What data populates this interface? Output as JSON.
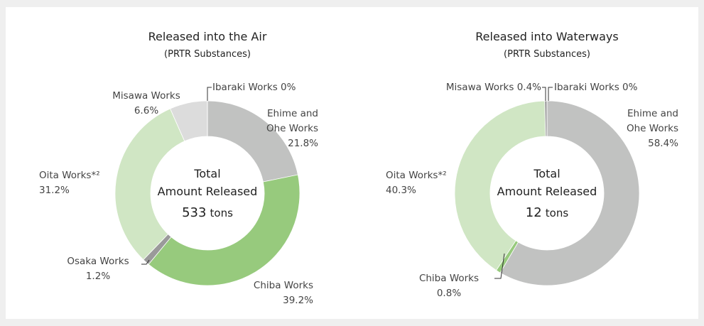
{
  "chart_data": [
    {
      "type": "donut",
      "title": "Released into the Air",
      "subtitle": "(PRTR Substances)",
      "categories": [
        "Ehime and Ohe Works",
        "Chiba Works",
        "Osaka Works",
        "Oita Works*²",
        "Misawa Works",
        "Ibaraki Works"
      ],
      "values": [
        21.8,
        39.2,
        1.2,
        31.2,
        6.6,
        0
      ],
      "value_labels": [
        "21.8%",
        "39.2%",
        "1.2%",
        "31.2%",
        "6.6%",
        "0%"
      ],
      "colors": [
        "#c1c2c1",
        "#97ca7d",
        "#9a9a9a",
        "#d0e6c4",
        "#dcdcdc",
        "#555555"
      ],
      "center": {
        "label_lines": [
          "Total",
          "Amount Released"
        ],
        "total": 533,
        "unit": "tons"
      }
    },
    {
      "type": "donut",
      "title": "Released into Waterways",
      "subtitle": "(PRTR Substances)",
      "categories": [
        "Ehime and Ohe Works",
        "Chiba Works",
        "Oita Works*²",
        "Misawa Works",
        "Ibaraki Works"
      ],
      "values": [
        58.4,
        0.8,
        40.3,
        0.4,
        0
      ],
      "value_labels": [
        "58.4%",
        "0.8%",
        "40.3%",
        "0.4%",
        "0%"
      ],
      "colors": [
        "#c1c2c1",
        "#97ca7d",
        "#d0e6c4",
        "#9a9a9a",
        "#555555"
      ],
      "center": {
        "label_lines": [
          "Total",
          "Amount Released"
        ],
        "total": 12,
        "unit": "tons"
      }
    }
  ]
}
